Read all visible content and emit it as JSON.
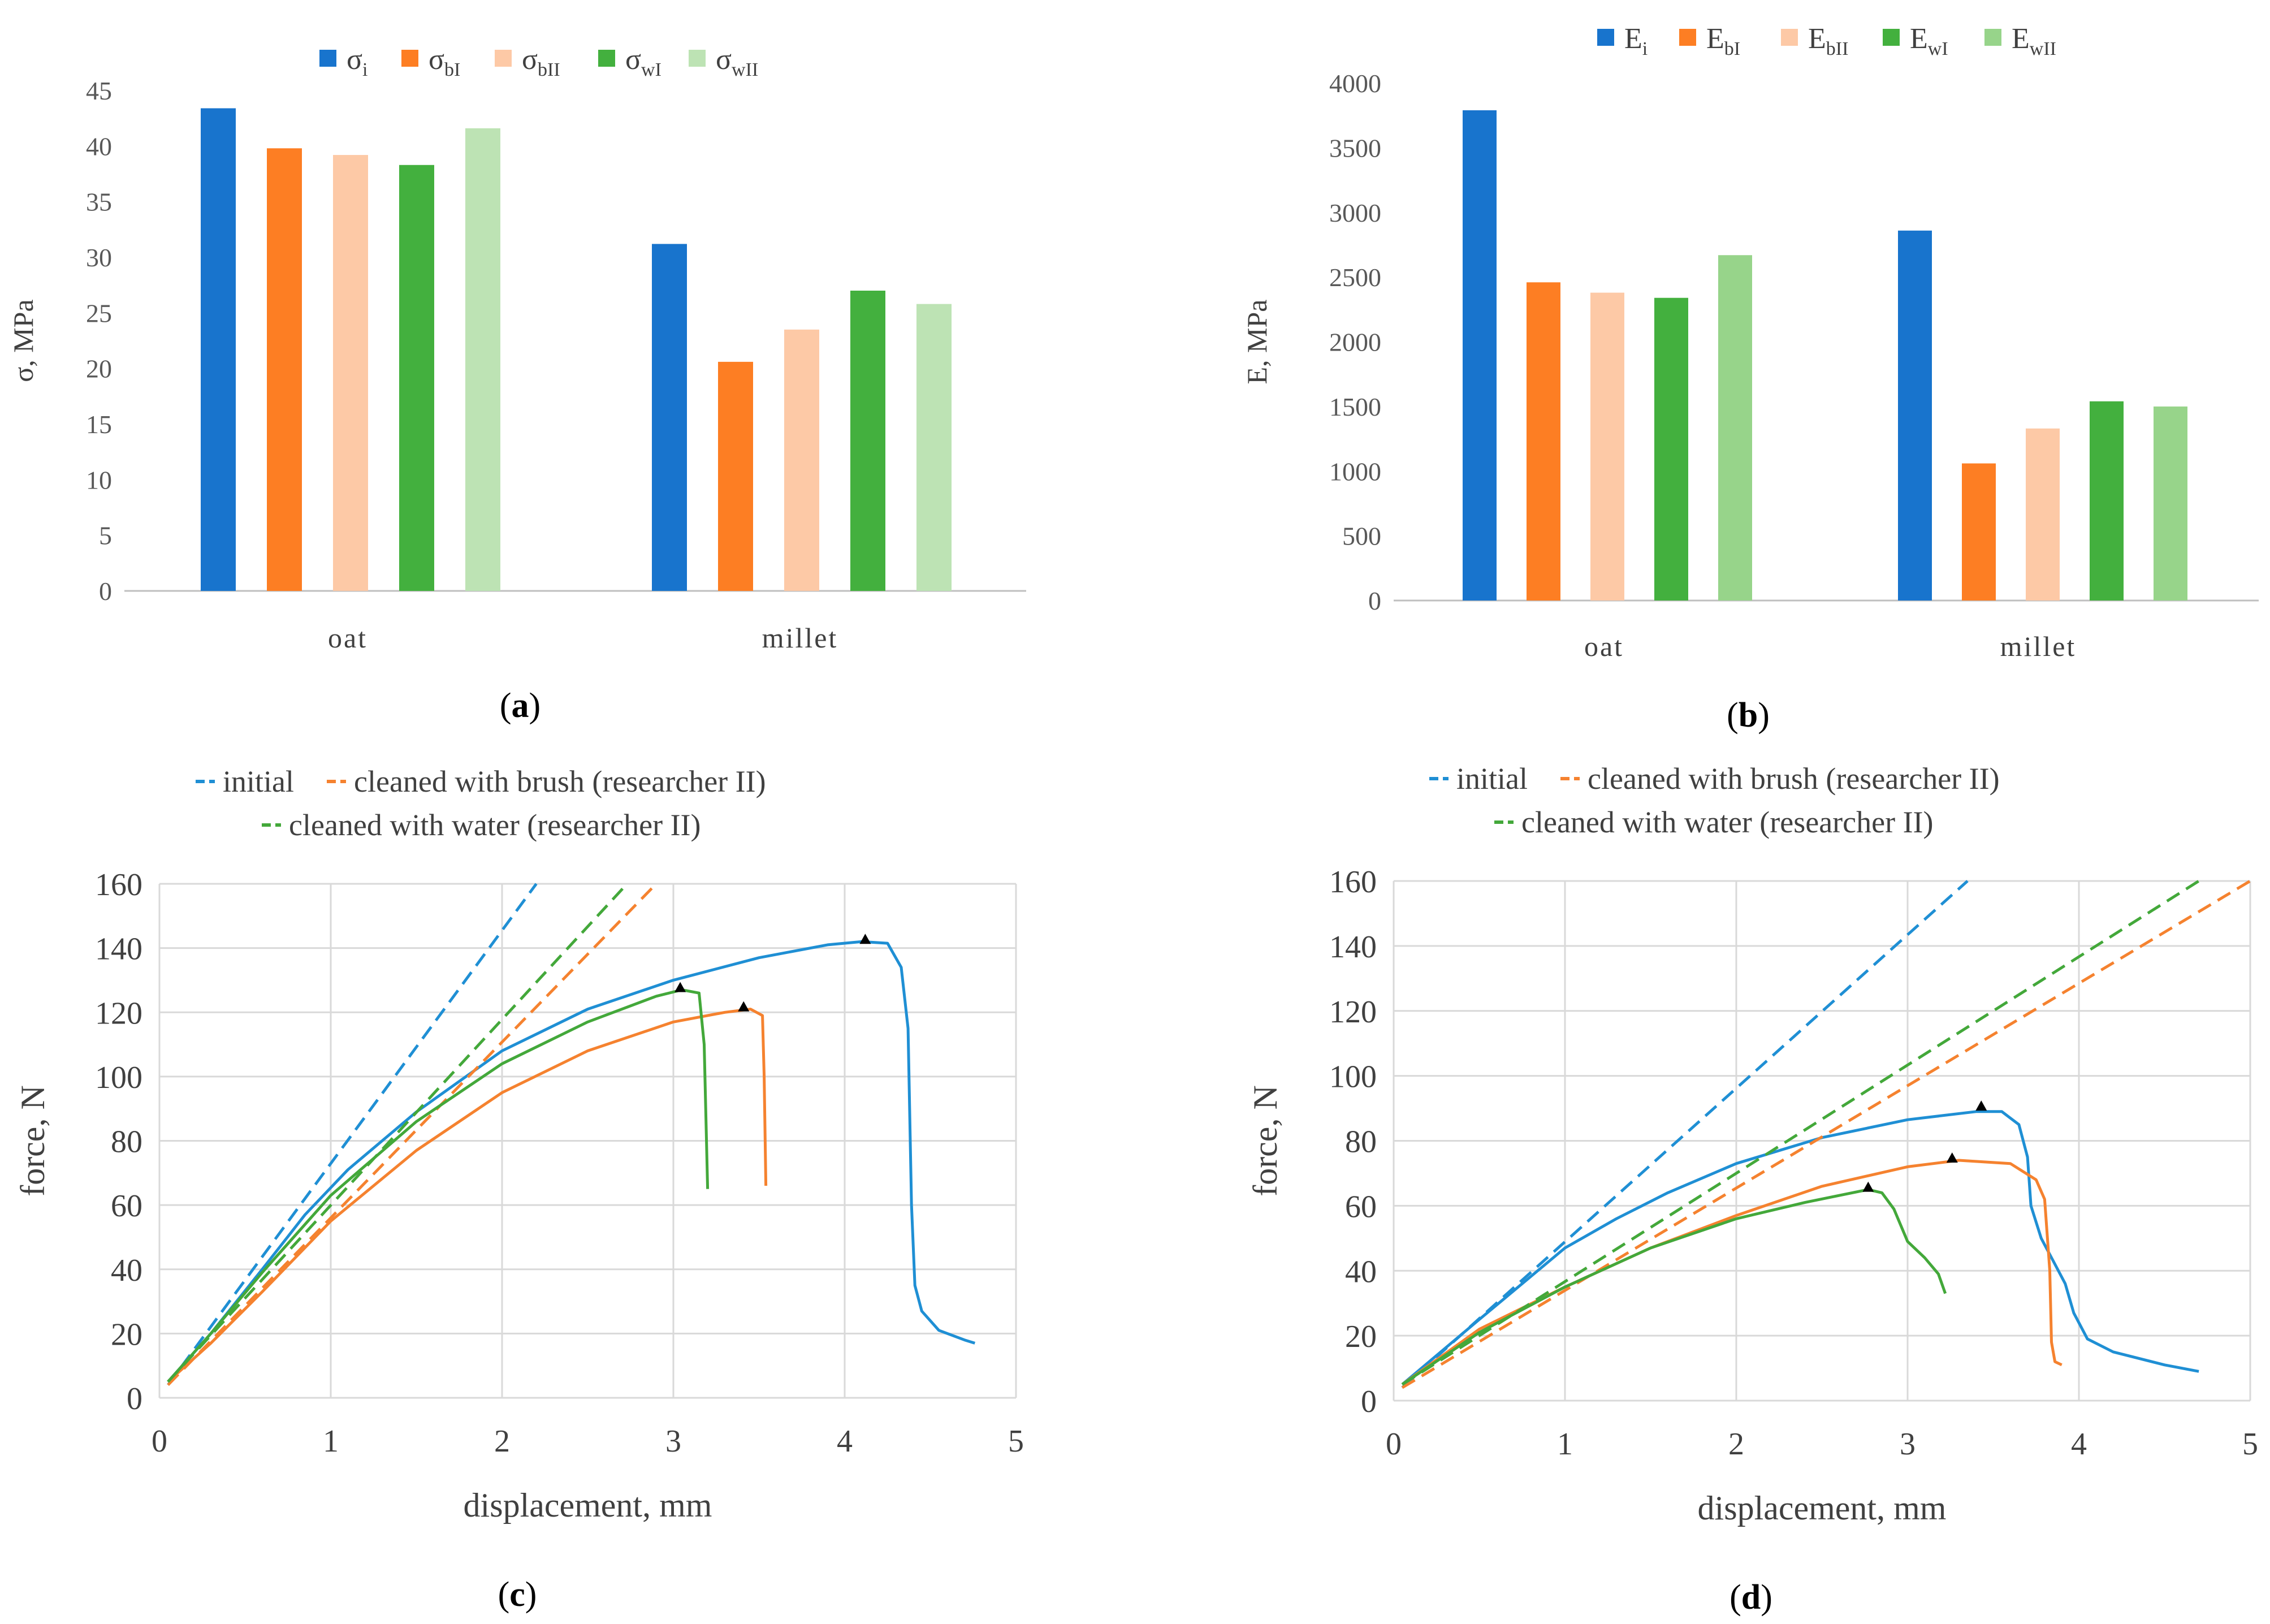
{
  "chart_data": [
    {
      "type": "bar",
      "panel": "a",
      "ylabel": "σ, MPa",
      "ylim": [
        0,
        45
      ],
      "yticks": [
        0,
        5,
        10,
        15,
        20,
        25,
        30,
        35,
        40,
        45
      ],
      "categories": [
        "oat",
        "millet"
      ],
      "series": [
        {
          "name": "σ",
          "sub": "i",
          "color": "#1874cd",
          "values": [
            43.4,
            31.2
          ]
        },
        {
          "name": "σ",
          "sub": "bI",
          "color": "#fd7e23",
          "values": [
            39.8,
            20.6
          ]
        },
        {
          "name": "σ",
          "sub": "bII",
          "color": "#fdc9a6",
          "values": [
            39.2,
            23.5
          ]
        },
        {
          "name": "σ",
          "sub": "wI",
          "color": "#43b03e",
          "values": [
            38.3,
            27.0
          ]
        },
        {
          "name": "σ",
          "sub": "wII",
          "color": "#bde3b4",
          "values": [
            41.6,
            25.8
          ]
        }
      ]
    },
    {
      "type": "bar",
      "panel": "b",
      "ylabel": "E, MPa",
      "ylim": [
        0,
        4000
      ],
      "yticks": [
        0,
        500,
        1000,
        1500,
        2000,
        2500,
        3000,
        3500,
        4000
      ],
      "categories": [
        "oat",
        "millet"
      ],
      "series": [
        {
          "name": "E",
          "sub": "i",
          "color": "#1874cd",
          "values": [
            3790,
            2860
          ]
        },
        {
          "name": "E",
          "sub": "bI",
          "color": "#fd7e23",
          "values": [
            2460,
            1060
          ]
        },
        {
          "name": "E",
          "sub": "bII",
          "color": "#fdc9a6",
          "values": [
            2380,
            1330
          ]
        },
        {
          "name": "E",
          "sub": "wI",
          "color": "#43b03e",
          "values": [
            2340,
            1540
          ]
        },
        {
          "name": "E",
          "sub": "wII",
          "color": "#97d48a",
          "values": [
            2670,
            1500
          ]
        }
      ]
    },
    {
      "type": "line",
      "panel": "c",
      "xlabel": "displacement,  mm",
      "ylabel": "force, N",
      "xlim": [
        0,
        5
      ],
      "ylim": [
        0,
        160
      ],
      "xticks": [
        0,
        1,
        2,
        3,
        4,
        5
      ],
      "yticks": [
        0,
        20,
        40,
        60,
        80,
        100,
        120,
        140,
        160
      ],
      "legend": [
        "initial",
        "cleaned with brush (researcher II)",
        "cleaned with water (researcher II)"
      ],
      "series": [
        {
          "name": "initial",
          "color": "#1f8fd4",
          "points": [
            [
              0.05,
              5
            ],
            [
              0.3,
              20
            ],
            [
              0.6,
              40
            ],
            [
              0.85,
              57
            ],
            [
              1.1,
              71
            ],
            [
              1.5,
              89
            ],
            [
              2.0,
              108
            ],
            [
              2.5,
              121
            ],
            [
              3.0,
              130
            ],
            [
              3.5,
              137
            ],
            [
              3.9,
              141
            ],
            [
              4.1,
              142
            ],
            [
              4.25,
              141.5
            ],
            [
              4.33,
              134
            ],
            [
              4.37,
              115
            ],
            [
              4.39,
              60
            ],
            [
              4.41,
              35
            ],
            [
              4.45,
              27
            ],
            [
              4.55,
              21
            ],
            [
              4.7,
              18
            ],
            [
              4.76,
              17
            ]
          ],
          "peak": [
            4.12,
            142
          ],
          "tangent": [
            [
              0.05,
              4
            ],
            [
              2.2,
              160
            ]
          ]
        },
        {
          "name": "cleaned with brush (researcher II)",
          "color": "#f5822f",
          "points": [
            [
              0.05,
              5
            ],
            [
              0.3,
              17
            ],
            [
              0.6,
              33
            ],
            [
              1.0,
              55
            ],
            [
              1.5,
              77
            ],
            [
              2.0,
              95
            ],
            [
              2.5,
              108
            ],
            [
              3.0,
              117
            ],
            [
              3.3,
              120
            ],
            [
              3.45,
              121
            ],
            [
              3.52,
              119
            ],
            [
              3.53,
              100
            ],
            [
              3.54,
              66
            ]
          ],
          "peak": [
            3.41,
            121
          ],
          "tangent": [
            [
              0.05,
              4
            ],
            [
              2.9,
              160
            ]
          ]
        },
        {
          "name": "cleaned with water (researcher II)",
          "color": "#43a83a",
          "points": [
            [
              0.05,
              5
            ],
            [
              0.3,
              20
            ],
            [
              0.6,
              39
            ],
            [
              1.0,
              63
            ],
            [
              1.5,
              86
            ],
            [
              2.0,
              104
            ],
            [
              2.5,
              117
            ],
            [
              2.9,
              125
            ],
            [
              3.05,
              127
            ],
            [
              3.15,
              126
            ],
            [
              3.18,
              110
            ],
            [
              3.2,
              65
            ]
          ],
          "peak": [
            3.04,
            127
          ],
          "tangent": [
            [
              0.05,
              5
            ],
            [
              2.73,
              160
            ]
          ]
        }
      ]
    },
    {
      "type": "line",
      "panel": "d",
      "xlabel": "displacement,  mm",
      "ylabel": "force, N",
      "xlim": [
        0,
        5
      ],
      "ylim": [
        0,
        160
      ],
      "xticks": [
        0,
        1,
        2,
        3,
        4,
        5
      ],
      "yticks": [
        0,
        20,
        40,
        60,
        80,
        100,
        120,
        140,
        160
      ],
      "legend": [
        "initial",
        "cleaned with brush (researcher II)",
        "cleaned with water (researcher II)"
      ],
      "series": [
        {
          "name": "initial",
          "color": "#1f8fd4",
          "points": [
            [
              0.05,
              5
            ],
            [
              0.5,
              25
            ],
            [
              1.0,
              47
            ],
            [
              1.3,
              56
            ],
            [
              1.6,
              64
            ],
            [
              2.0,
              73
            ],
            [
              2.5,
              81
            ],
            [
              3.0,
              86.5
            ],
            [
              3.4,
              89
            ],
            [
              3.55,
              89
            ],
            [
              3.65,
              85
            ],
            [
              3.7,
              75
            ],
            [
              3.72,
              60
            ],
            [
              3.78,
              50
            ],
            [
              3.85,
              43
            ],
            [
              3.92,
              36
            ],
            [
              3.97,
              27
            ],
            [
              4.05,
              19
            ],
            [
              4.2,
              15
            ],
            [
              4.5,
              11
            ],
            [
              4.7,
              9
            ]
          ],
          "peak": [
            3.43,
            90
          ],
          "tangent": [
            [
              0.05,
              4
            ],
            [
              3.35,
              160
            ]
          ]
        },
        {
          "name": "cleaned with brush (researcher II)",
          "color": "#f5822f",
          "points": [
            [
              0.05,
              5
            ],
            [
              0.5,
              22
            ],
            [
              1.0,
              35
            ],
            [
              1.5,
              47
            ],
            [
              2.0,
              57
            ],
            [
              2.5,
              66
            ],
            [
              3.0,
              72
            ],
            [
              3.3,
              74
            ],
            [
              3.6,
              73
            ],
            [
              3.75,
              68
            ],
            [
              3.8,
              62
            ],
            [
              3.83,
              40
            ],
            [
              3.84,
              18
            ],
            [
              3.86,
              12
            ],
            [
              3.9,
              11
            ]
          ],
          "peak": [
            3.26,
            74
          ],
          "tangent": [
            [
              0.05,
              4
            ],
            [
              5.0,
              160
            ]
          ]
        },
        {
          "name": "cleaned with water (researcher II)",
          "color": "#43a83a",
          "points": [
            [
              0.05,
              5
            ],
            [
              0.5,
              21
            ],
            [
              1.0,
              35
            ],
            [
              1.5,
              47
            ],
            [
              2.0,
              56
            ],
            [
              2.4,
              61
            ],
            [
              2.77,
              65
            ],
            [
              2.85,
              64
            ],
            [
              2.92,
              59
            ],
            [
              3.0,
              49
            ],
            [
              3.1,
              44
            ],
            [
              3.18,
              39
            ],
            [
              3.22,
              33
            ]
          ],
          "peak": [
            2.77,
            65
          ],
          "tangent": [
            [
              0.05,
              5
            ],
            [
              4.7,
              160
            ]
          ]
        }
      ]
    }
  ],
  "panel_labels": {
    "a": "a",
    "b": "b",
    "c": "c",
    "d": "d"
  },
  "bar_categories": {
    "oat": "oat",
    "millet": "millet"
  },
  "line_legend": {
    "initial": "initial",
    "brush": "cleaned with brush (researcher II)",
    "water": "cleaned with water (researcher II)"
  }
}
